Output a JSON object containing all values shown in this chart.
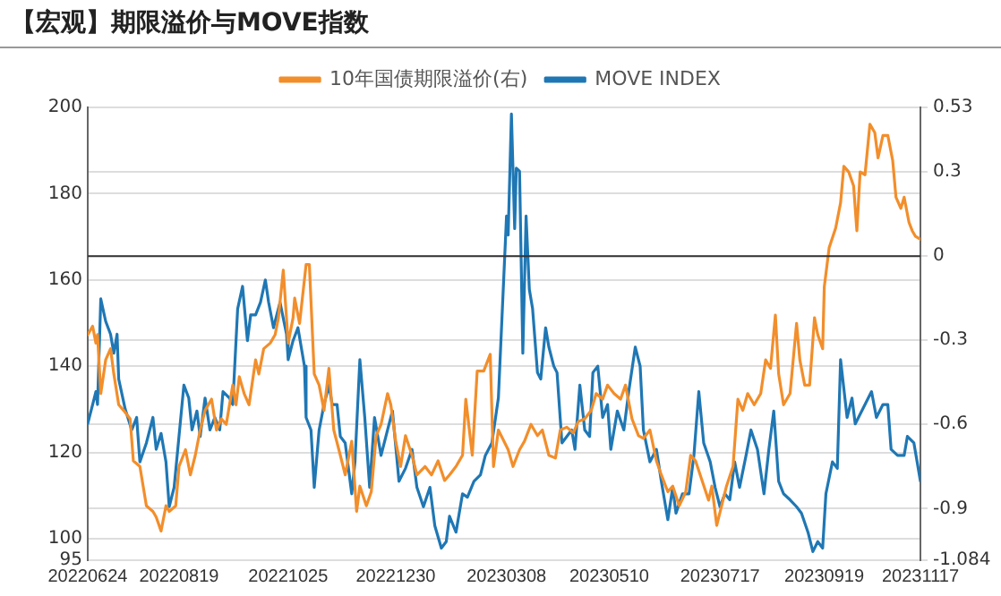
{
  "chart_data": {
    "type": "line",
    "title": "【宏观】期限溢价与MOVE指数",
    "xlim": [
      "2022-06-24",
      "2023-11-17"
    ],
    "xticks": [
      {
        "value": "2022-06-24",
        "label": "20220624"
      },
      {
        "value": "2022-08-19",
        "label": "20220819"
      },
      {
        "value": "2022-10-25",
        "label": "20221025"
      },
      {
        "value": "2022-12-30",
        "label": "20221230"
      },
      {
        "value": "2023-03-08",
        "label": "20230308"
      },
      {
        "value": "2023-05-10",
        "label": "20230510"
      },
      {
        "value": "2023-07-17",
        "label": "20230717"
      },
      {
        "value": "2023-09-19",
        "label": "20230919"
      },
      {
        "value": "2023-11-17",
        "label": "20231117"
      }
    ],
    "ylim": [
      95,
      200
    ],
    "yticks": [
      95,
      100,
      120,
      140,
      160,
      180,
      200
    ],
    "y2lim": [
      -1.084,
      0.53
    ],
    "y2ticks": [
      -1.084,
      -0.9,
      -0.6,
      -0.3,
      0,
      0.3,
      0.53
    ],
    "grid": "y",
    "legend": "top",
    "marker": "none",
    "line_style": "solid",
    "ref_lines": [
      {
        "axis": "y2",
        "value": 0,
        "color": "#333333"
      }
    ],
    "series": [
      {
        "name": "10年国债期限溢价(右)",
        "color": "#f28e2b",
        "axis": "y2",
        "x": [
          "2022-06-24",
          "2022-06-27",
          "2022-06-29",
          "2022-06-30",
          "2022-07-02",
          "2022-07-05",
          "2022-07-08",
          "2022-07-10",
          "2022-07-13",
          "2022-07-16",
          "2022-07-20",
          "2022-07-22",
          "2022-07-26",
          "2022-07-30",
          "2022-08-03",
          "2022-08-05",
          "2022-08-08",
          "2022-08-11",
          "2022-08-13",
          "2022-08-17",
          "2022-08-19",
          "2022-08-23",
          "2022-08-26",
          "2022-08-29",
          "2022-09-01",
          "2022-09-04",
          "2022-09-08",
          "2022-09-11",
          "2022-09-14",
          "2022-09-17",
          "2022-09-21",
          "2022-09-23",
          "2022-09-25",
          "2022-09-28",
          "2022-10-01",
          "2022-10-05",
          "2022-10-07",
          "2022-10-10",
          "2022-10-14",
          "2022-10-17",
          "2022-10-19",
          "2022-10-22",
          "2022-10-25",
          "2022-10-28",
          "2022-10-29",
          "2022-11-01",
          "2022-11-05",
          "2022-11-07",
          "2022-11-10",
          "2022-11-13",
          "2022-11-16",
          "2022-11-19",
          "2022-11-22",
          "2022-11-26",
          "2022-11-29",
          "2022-12-03",
          "2022-12-06",
          "2022-12-08",
          "2022-12-12",
          "2022-12-15",
          "2022-12-18",
          "2022-12-21",
          "2022-12-25",
          "2022-12-27",
          "2022-12-30",
          "2023-01-02",
          "2023-01-05",
          "2023-01-09",
          "2023-01-12",
          "2023-01-17",
          "2023-01-21",
          "2023-01-25",
          "2023-01-29",
          "2023-02-01",
          "2023-02-05",
          "2023-02-09",
          "2023-02-11",
          "2023-02-15",
          "2023-02-18",
          "2023-02-22",
          "2023-02-26",
          "2023-02-28",
          "2023-03-03",
          "2023-03-09",
          "2023-03-12",
          "2023-03-16",
          "2023-03-19",
          "2023-03-23",
          "2023-03-27",
          "2023-03-30",
          "2023-04-03",
          "2023-04-07",
          "2023-04-10",
          "2023-04-14",
          "2023-04-18",
          "2023-04-21",
          "2023-04-25",
          "2023-04-29",
          "2023-05-02",
          "2023-05-06",
          "2023-05-09",
          "2023-05-13",
          "2023-05-17",
          "2023-05-20",
          "2023-05-24",
          "2023-05-28",
          "2023-05-31",
          "2023-06-04",
          "2023-06-08",
          "2023-06-11",
          "2023-06-15",
          "2023-06-18",
          "2023-06-22",
          "2023-06-26",
          "2023-06-29",
          "2023-07-02",
          "2023-07-06",
          "2023-07-10",
          "2023-07-12",
          "2023-07-15",
          "2023-07-18",
          "2023-07-21",
          "2023-07-25",
          "2023-07-28",
          "2023-07-31",
          "2023-08-03",
          "2023-08-07",
          "2023-08-11",
          "2023-08-14",
          "2023-08-17",
          "2023-08-20",
          "2023-08-22",
          "2023-08-25",
          "2023-08-29",
          "2023-09-02",
          "2023-09-04",
          "2023-09-07",
          "2023-09-10",
          "2023-09-13",
          "2023-09-15",
          "2023-09-18",
          "2023-09-19",
          "2023-09-22",
          "2023-09-26",
          "2023-09-29",
          "2023-10-01",
          "2023-10-04",
          "2023-10-07",
          "2023-10-09",
          "2023-10-11",
          "2023-10-14",
          "2023-10-17",
          "2023-10-20",
          "2023-10-22",
          "2023-10-25",
          "2023-10-28",
          "2023-10-31",
          "2023-11-02",
          "2023-11-05",
          "2023-11-07",
          "2023-11-10",
          "2023-11-12",
          "2023-11-14",
          "2023-11-17"
        ],
        "values": [
          -0.28,
          -0.25,
          -0.31,
          -0.28,
          -0.49,
          -0.37,
          -0.33,
          -0.42,
          -0.53,
          -0.55,
          -0.58,
          -0.73,
          -0.75,
          -0.89,
          -0.91,
          -0.93,
          -0.98,
          -0.89,
          -0.91,
          -0.89,
          -0.75,
          -0.69,
          -0.78,
          -0.71,
          -0.62,
          -0.55,
          -0.51,
          -0.62,
          -0.58,
          -0.6,
          -0.46,
          -0.53,
          -0.43,
          -0.49,
          -0.53,
          -0.37,
          -0.42,
          -0.33,
          -0.31,
          -0.28,
          -0.22,
          -0.05,
          -0.31,
          -0.22,
          -0.15,
          -0.24,
          -0.03,
          -0.03,
          -0.42,
          -0.46,
          -0.55,
          -0.4,
          -0.62,
          -0.71,
          -0.78,
          -0.66,
          -0.91,
          -0.82,
          -0.89,
          -0.84,
          -0.64,
          -0.6,
          -0.49,
          -0.53,
          -0.66,
          -0.75,
          -0.64,
          -0.71,
          -0.78,
          -0.75,
          -0.78,
          -0.73,
          -0.8,
          -0.78,
          -0.75,
          -0.71,
          -0.51,
          -0.71,
          -0.41,
          -0.41,
          -0.35,
          -0.75,
          -0.62,
          -0.69,
          -0.75,
          -0.69,
          -0.66,
          -0.6,
          -0.64,
          -0.62,
          -0.71,
          -0.72,
          -0.62,
          -0.61,
          -0.63,
          -0.59,
          -0.58,
          -0.55,
          -0.49,
          -0.51,
          -0.46,
          -0.49,
          -0.51,
          -0.46,
          -0.58,
          -0.64,
          -0.65,
          -0.62,
          -0.73,
          -0.78,
          -0.84,
          -0.82,
          -0.89,
          -0.84,
          -0.71,
          -0.73,
          -0.8,
          -0.87,
          -0.82,
          -0.96,
          -0.89,
          -0.82,
          -0.75,
          -0.51,
          -0.55,
          -0.49,
          -0.53,
          -0.49,
          -0.37,
          -0.4,
          -0.21,
          -0.42,
          -0.53,
          -0.49,
          -0.24,
          -0.37,
          -0.46,
          -0.46,
          -0.22,
          -0.28,
          -0.33,
          -0.11,
          0.03,
          0.1,
          0.19,
          0.32,
          0.3,
          0.25,
          0.09,
          0.3,
          0.29,
          0.47,
          0.44,
          0.35,
          0.43,
          0.43,
          0.34,
          0.21,
          0.17,
          0.21,
          0.12,
          0.09,
          0.07,
          0.06
        ]
      },
      {
        "name": "MOVE INDEX",
        "color": "#1f77b4",
        "x": [
          "2022-06-24",
          "2022-06-27",
          "2022-06-29",
          "2022-06-30",
          "2022-07-02",
          "2022-07-05",
          "2022-07-08",
          "2022-07-10",
          "2022-07-12",
          "2022-07-13",
          "2022-07-17",
          "2022-07-21",
          "2022-07-24",
          "2022-07-26",
          "2022-07-30",
          "2022-08-03",
          "2022-08-05",
          "2022-08-08",
          "2022-08-11",
          "2022-08-13",
          "2022-08-16",
          "2022-08-19",
          "2022-08-22",
          "2022-08-25",
          "2022-08-27",
          "2022-08-30",
          "2022-09-01",
          "2022-09-04",
          "2022-09-07",
          "2022-09-10",
          "2022-09-13",
          "2022-09-15",
          "2022-09-19",
          "2022-09-21",
          "2022-09-24",
          "2022-09-27",
          "2022-09-30",
          "2022-10-02",
          "2022-10-05",
          "2022-10-08",
          "2022-10-11",
          "2022-10-13",
          "2022-10-16",
          "2022-10-20",
          "2022-10-24",
          "2022-10-25",
          "2022-10-28",
          "2022-10-31",
          "2022-11-04",
          "2022-11-05",
          "2022-11-08",
          "2022-11-10",
          "2022-11-13",
          "2022-11-16",
          "2022-11-19",
          "2022-11-21",
          "2022-11-24",
          "2022-11-26",
          "2022-11-29",
          "2022-12-03",
          "2022-12-05",
          "2022-12-08",
          "2022-12-11",
          "2022-12-14",
          "2022-12-17",
          "2022-12-21",
          "2022-12-25",
          "2022-12-28",
          "2023-01-01",
          "2023-01-05",
          "2023-01-09",
          "2023-01-12",
          "2023-01-16",
          "2023-01-20",
          "2023-01-23",
          "2023-01-27",
          "2023-01-30",
          "2023-02-01",
          "2023-02-05",
          "2023-02-09",
          "2023-02-12",
          "2023-02-16",
          "2023-02-20",
          "2023-02-23",
          "2023-02-27",
          "2023-03-03",
          "2023-03-08",
          "2023-03-09",
          "2023-03-11",
          "2023-03-13",
          "2023-03-14",
          "2023-03-16",
          "2023-03-18",
          "2023-03-20",
          "2023-03-22",
          "2023-03-24",
          "2023-03-27",
          "2023-03-29",
          "2023-04-01",
          "2023-04-03",
          "2023-04-06",
          "2023-04-08",
          "2023-04-11",
          "2023-04-14",
          "2023-04-17",
          "2023-04-19",
          "2023-04-22",
          "2023-04-25",
          "2023-04-28",
          "2023-04-30",
          "2023-05-03",
          "2023-05-06",
          "2023-05-09",
          "2023-05-11",
          "2023-05-15",
          "2023-05-19",
          "2023-05-22",
          "2023-05-26",
          "2023-05-29",
          "2023-05-31",
          "2023-06-04",
          "2023-06-08",
          "2023-06-11",
          "2023-06-15",
          "2023-06-18",
          "2023-06-20",
          "2023-06-24",
          "2023-06-28",
          "2023-07-01",
          "2023-07-04",
          "2023-07-07",
          "2023-07-11",
          "2023-07-14",
          "2023-07-17",
          "2023-07-20",
          "2023-07-23",
          "2023-07-26",
          "2023-07-29",
          "2023-08-02",
          "2023-08-05",
          "2023-08-09",
          "2023-08-13",
          "2023-08-16",
          "2023-08-19",
          "2023-08-22",
          "2023-08-25",
          "2023-08-29",
          "2023-09-02",
          "2023-09-05",
          "2023-09-09",
          "2023-09-12",
          "2023-09-15",
          "2023-09-18",
          "2023-09-20",
          "2023-09-24",
          "2023-09-27",
          "2023-09-29",
          "2023-10-03",
          "2023-10-06",
          "2023-10-08",
          "2023-10-12",
          "2023-10-16",
          "2023-10-18",
          "2023-10-21",
          "2023-10-25",
          "2023-10-28",
          "2023-10-30",
          "2023-11-03",
          "2023-11-07",
          "2023-11-09",
          "2023-11-13",
          "2023-11-17"
        ],
        "values": [
          126.7,
          131.1,
          134.1,
          131.1,
          155.6,
          150.4,
          147.4,
          143,
          147.4,
          137,
          130,
          125.2,
          128.1,
          117.8,
          122.2,
          128.1,
          120.7,
          124.4,
          117.8,
          107.4,
          111.9,
          123.7,
          135.6,
          132.6,
          125.2,
          129.6,
          123.7,
          132.6,
          125.2,
          128.1,
          125.2,
          134.1,
          132.6,
          131.1,
          153.3,
          158.5,
          145.9,
          151.9,
          151.9,
          154.8,
          160,
          154.8,
          148.9,
          154.8,
          147.4,
          141.5,
          145.9,
          148.9,
          140,
          128.1,
          125.2,
          111.9,
          125.2,
          131.1,
          135.6,
          131.1,
          131.1,
          123.7,
          122.2,
          110.4,
          117.8,
          141.5,
          128.1,
          111.9,
          128.1,
          119.3,
          125.2,
          129.6,
          113.3,
          116.3,
          120.7,
          111.9,
          107.4,
          111.9,
          103,
          97.8,
          99.3,
          105.2,
          101.5,
          110.4,
          109.6,
          113.3,
          114.8,
          119.3,
          122.2,
          132.6,
          174.8,
          170.4,
          198.5,
          171.9,
          185.9,
          185.2,
          143,
          174.8,
          157.8,
          153.3,
          138.5,
          137,
          148.9,
          144.4,
          140,
          138.5,
          122.2,
          123.7,
          125.2,
          120.7,
          135.6,
          125.2,
          123.7,
          138.5,
          140,
          128.1,
          131.1,
          120.7,
          129.6,
          125.2,
          134.1,
          144.4,
          140,
          125.2,
          117.8,
          120.7,
          113.3,
          104.4,
          111.9,
          105.9,
          110.4,
          110.4,
          119.3,
          134.1,
          122.2,
          117.8,
          111.9,
          107.4,
          110.4,
          109,
          117.8,
          111.9,
          119.3,
          125.2,
          120.7,
          110.4,
          120.7,
          129.6,
          113.3,
          110.4,
          109,
          107.4,
          105.9,
          101.5,
          97,
          99.3,
          97.8,
          110.4,
          117.8,
          116.3,
          141.5,
          128.1,
          132.6,
          126.6,
          129.6,
          132.6,
          134.1,
          128.1,
          131.1,
          131.1,
          120.7,
          119.3,
          119.3,
          123.7,
          122.2,
          113.3
        ]
      }
    ]
  }
}
